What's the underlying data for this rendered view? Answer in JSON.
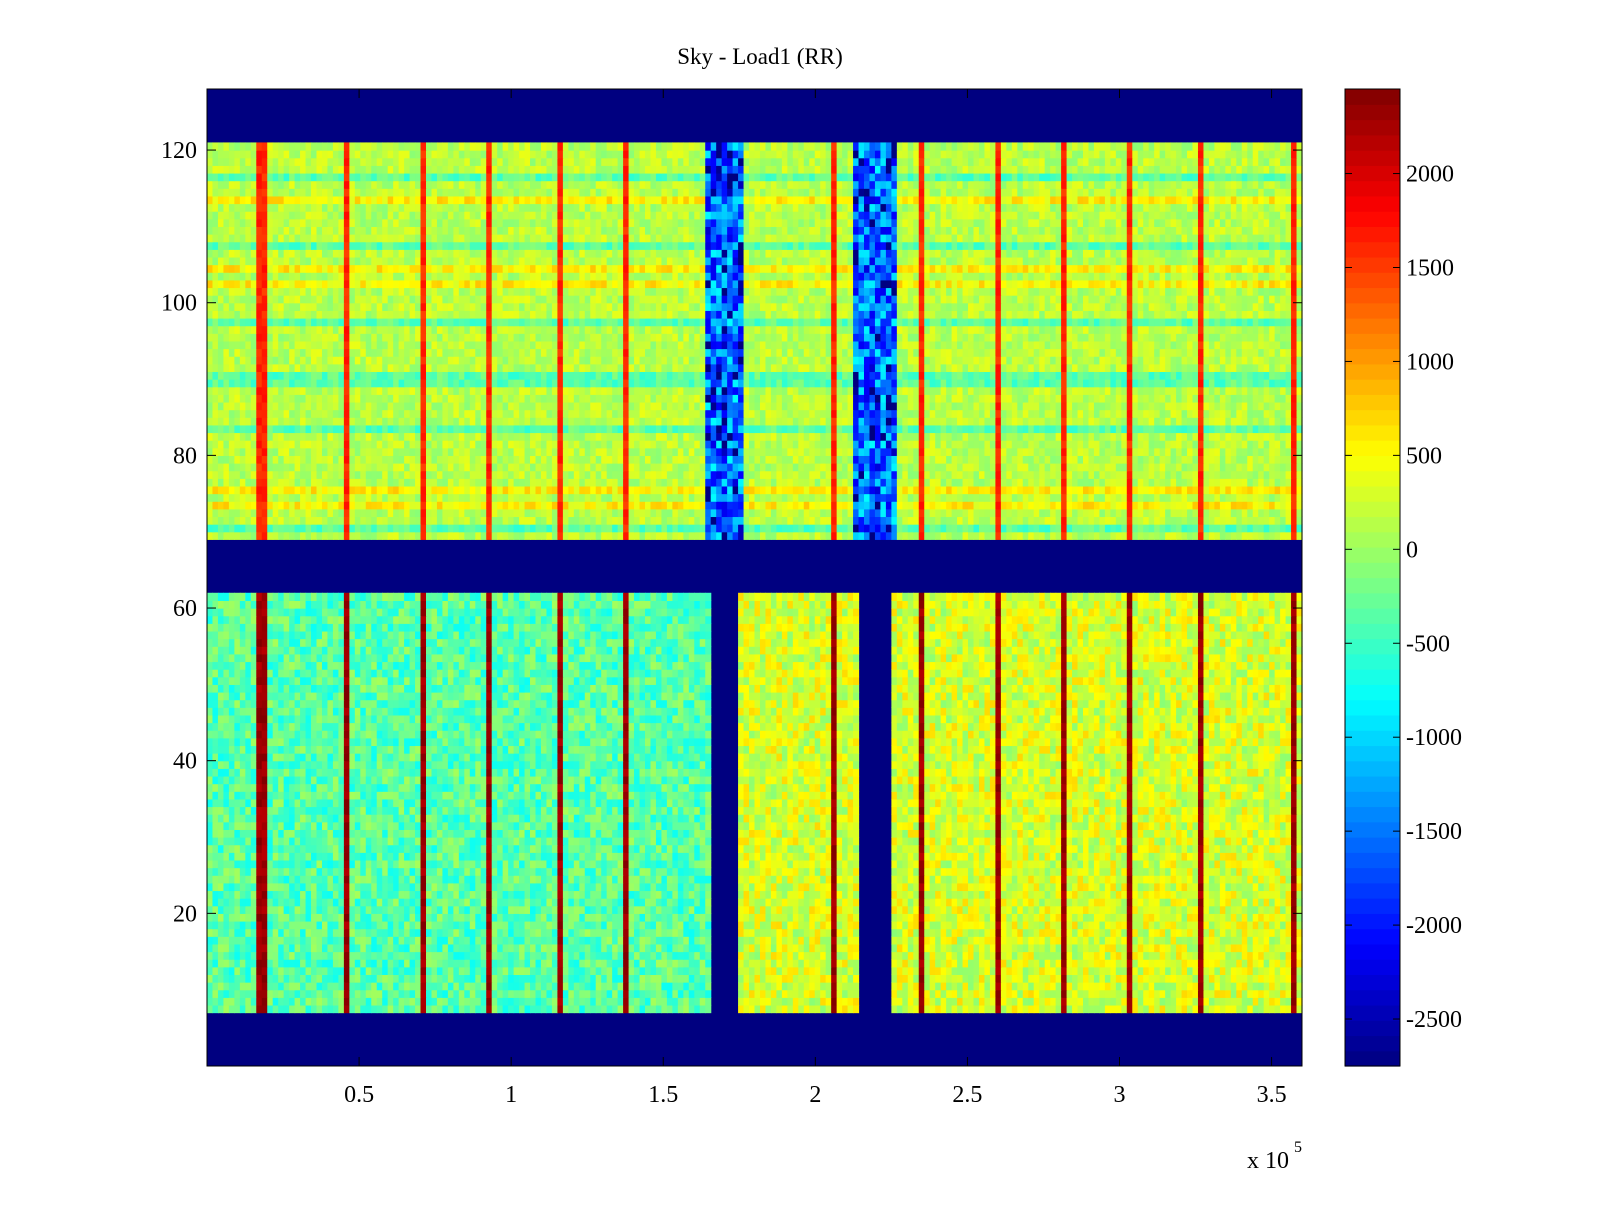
{
  "chart_data": {
    "type": "heatmap",
    "title": "Sky - Load1 (RR)",
    "xlabel": "",
    "ylabel": "",
    "x_range": [
      0,
      360000
    ],
    "y_range": [
      0,
      128
    ],
    "x_multiplier_label": "x 10",
    "x_multiplier_exponent": "5",
    "x_ticks": [
      0.5,
      1,
      1.5,
      2,
      2.5,
      3,
      3.5
    ],
    "x_tick_labels": [
      "0.5",
      "1",
      "1.5",
      "2",
      "2.5",
      "3",
      "3.5"
    ],
    "y_ticks": [
      20,
      40,
      60,
      80,
      100,
      120
    ],
    "y_tick_labels": [
      "20",
      "40",
      "60",
      "80",
      "100",
      "120"
    ],
    "colorscale": "jet",
    "color_range": [
      -2750,
      2450
    ],
    "colorbar_ticks": [
      2000,
      1500,
      1000,
      500,
      0,
      -500,
      -1000,
      -1500,
      -2000,
      -2500
    ],
    "colorbar_tick_labels": [
      "2000",
      "1500",
      "1000",
      "500",
      "0",
      "-500",
      "-1000",
      "-1500",
      "-2000",
      "-2500"
    ],
    "masked_value": -2750,
    "masked_rows": [
      [
        121,
        128
      ],
      [
        62,
        69
      ],
      [
        0,
        7.5
      ]
    ],
    "masked_columns": [
      [
        165000,
        175000
      ],
      [
        215000,
        225000
      ]
    ],
    "upper_block": {
      "rows": [
        69,
        121
      ],
      "typical_value": 150
    },
    "lower_block": {
      "rows": [
        7.5,
        62
      ],
      "left_typical_value": -350,
      "right_typical_value": 300,
      "split_x": 175000
    },
    "bright_columns_x": [
      18000,
      46000,
      71000,
      93000,
      116000,
      138000,
      206000,
      235000,
      260000,
      282000,
      304000,
      326000,
      357000
    ],
    "bright_column_value": 2300,
    "notch_bands_x": [
      [
        163000,
        177000
      ],
      [
        213000,
        227000
      ]
    ],
    "notch_band_typical_value": -1500,
    "grid": false
  }
}
